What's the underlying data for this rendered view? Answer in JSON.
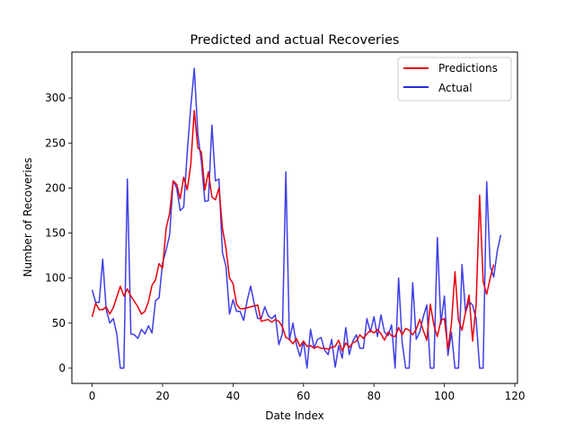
{
  "chart_data": {
    "type": "line",
    "title": "Predicted and actual Recoveries",
    "xlabel": "Date Index",
    "ylabel": "Number of Recoveries",
    "xlim": [
      -5.75,
      120.75
    ],
    "ylim": [
      -17,
      351
    ],
    "xticks": [
      0,
      20,
      40,
      60,
      80,
      100,
      120
    ],
    "yticks": [
      0,
      50,
      100,
      150,
      200,
      250,
      300
    ],
    "grid": false,
    "legend": "upper-right",
    "series": [
      {
        "name": "Predictions",
        "color": "#e8000b",
        "values": [
          57,
          72,
          65,
          65,
          68,
          60,
          67,
          79,
          91,
          80,
          88,
          80,
          74,
          68,
          60,
          63,
          74,
          92,
          98,
          116,
          111,
          155,
          172,
          208,
          204,
          188,
          212,
          198,
          226,
          286,
          245,
          240,
          198,
          218,
          190,
          187,
          200,
          155,
          133,
          100,
          94,
          71,
          66,
          66,
          67,
          68,
          69,
          70,
          52,
          53,
          54,
          51,
          54,
          52,
          46,
          34,
          32,
          27,
          33,
          24,
          30,
          24,
          25,
          22,
          24,
          22,
          22,
          21,
          23,
          24,
          31,
          19,
          28,
          23,
          28,
          30,
          37,
          33,
          38,
          42,
          39,
          43,
          38,
          31,
          40,
          36,
          35,
          45,
          37,
          44,
          42,
          37,
          43,
          54,
          42,
          31,
          71,
          48,
          35,
          53,
          55,
          21,
          49,
          107,
          53,
          42,
          62,
          81,
          30,
          70,
          192,
          96,
          82,
          100,
          115
        ],
        "line_width": 1.5
      },
      {
        "name": "Actual",
        "color": "#2929e6",
        "values": [
          87,
          73,
          73,
          121,
          65,
          50,
          55,
          38,
          0,
          0,
          210,
          38,
          37,
          33,
          43,
          38,
          47,
          39,
          75,
          78,
          117,
          131,
          148,
          208,
          200,
          175,
          179,
          240,
          290,
          333,
          260,
          230,
          185,
          186,
          270,
          208,
          210,
          128,
          113,
          60,
          76,
          63,
          63,
          53,
          75,
          91,
          72,
          55,
          55,
          68,
          58,
          55,
          59,
          26,
          38,
          218,
          31,
          50,
          26,
          13,
          30,
          0,
          43,
          22,
          32,
          34,
          20,
          15,
          32,
          1,
          25,
          11,
          45,
          15,
          30,
          37,
          22,
          22,
          55,
          40,
          57,
          35,
          59,
          40,
          36,
          48,
          0,
          100,
          29,
          0,
          0,
          95,
          32,
          40,
          57,
          70,
          0,
          0,
          145,
          49,
          80,
          14,
          40,
          0,
          0,
          115,
          62,
          74,
          70,
          55,
          0,
          0,
          207,
          113,
          101,
          130,
          148
        ],
        "line_width": 1.5
      }
    ]
  }
}
